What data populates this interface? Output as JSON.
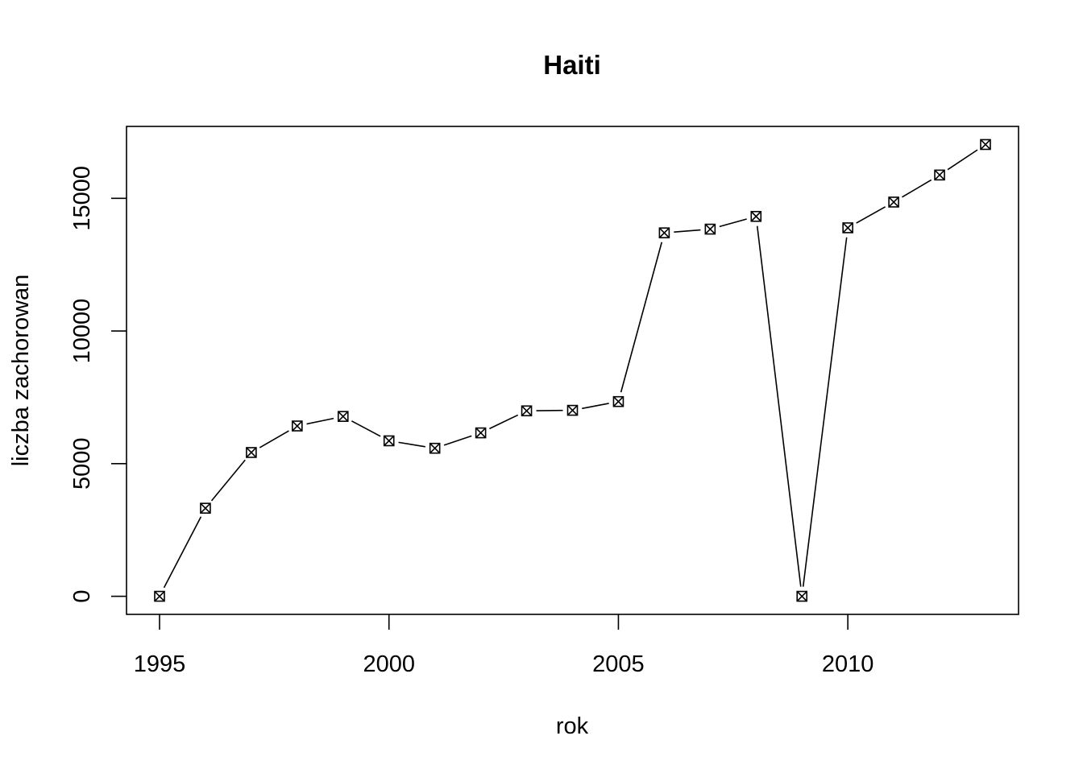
{
  "chart_data": {
    "type": "line",
    "title": "Haiti",
    "xlabel": "rok",
    "ylabel": "liczba zachorowan",
    "x": [
      1995,
      1996,
      1997,
      1998,
      1999,
      2000,
      2001,
      2002,
      2003,
      2004,
      2005,
      2006,
      2007,
      2008,
      2009,
      2010,
      2011,
      2012,
      2013
    ],
    "series": [
      {
        "values": [
          0,
          3320,
          5420,
          6420,
          6780,
          5860,
          5580,
          6160,
          6990,
          7010,
          7340,
          13700,
          13840,
          14320,
          0,
          13890,
          14860,
          15880,
          17030
        ]
      }
    ],
    "xlim": [
      1994.28,
      2013.72
    ],
    "ylim": [
      -682,
      17712
    ],
    "xticks": [
      1995,
      2000,
      2005,
      2010
    ],
    "yticks": [
      0,
      5000,
      10000,
      15000
    ],
    "x_tick_labels": [
      "1995",
      "2000",
      "2005",
      "2010"
    ],
    "y_tick_labels": [
      "0",
      "5000",
      "10000",
      "15000"
    ],
    "marker": "square-x",
    "line_style": "both",
    "grid": false,
    "legend": "none",
    "colors": {
      "line": "#000000",
      "marker": "#000000",
      "background": "#ffffff"
    }
  }
}
